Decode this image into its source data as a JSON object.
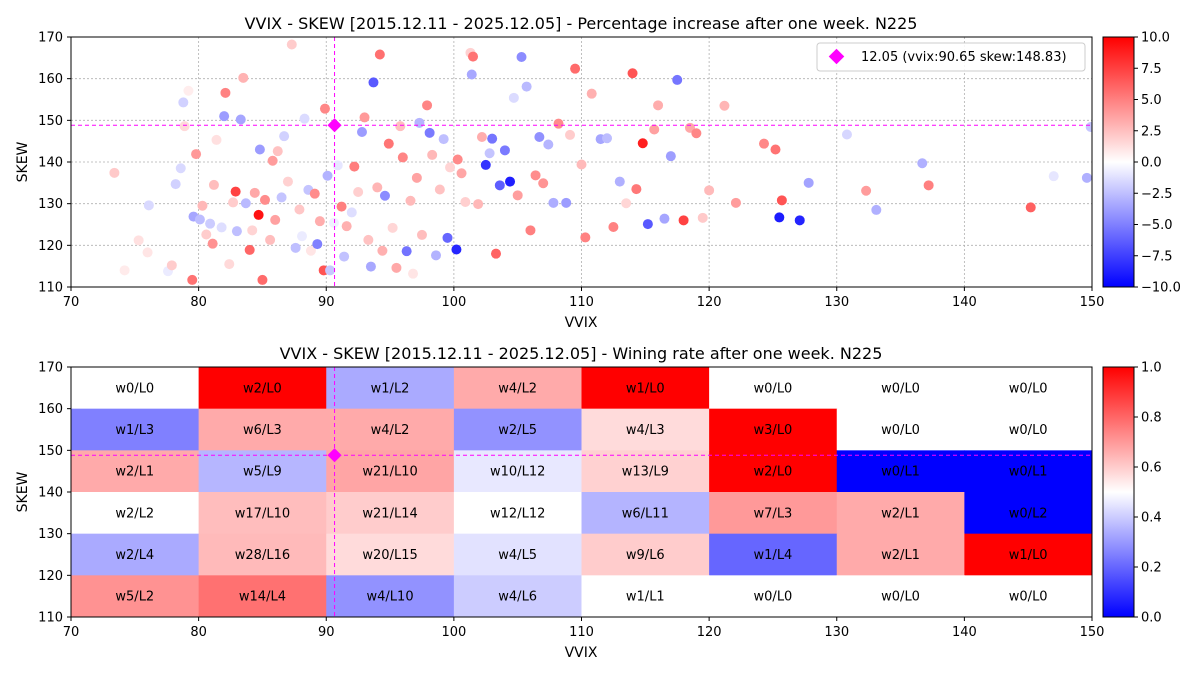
{
  "chart_data": [
    {
      "type": "scatter",
      "title": "VVIX - SKEW [2015.12.11 - 2025.12.05]  - Percentage increase after one week. N225",
      "xlabel": "VVIX",
      "ylabel": "SKEW",
      "xlim": [
        70,
        150
      ],
      "ylim": [
        110,
        170
      ],
      "x_ticks": [
        "70",
        "80",
        "90",
        "100",
        "110",
        "120",
        "130",
        "140",
        "150"
      ],
      "y_ticks": [
        "110",
        "120",
        "130",
        "140",
        "150",
        "160",
        "170"
      ],
      "grid": true,
      "colorbar": {
        "min": -10,
        "max": 10,
        "ticks": [
          "10.0",
          "7.5",
          "5.0",
          "2.5",
          "0.0",
          "−2.5",
          "−5.0",
          "−7.5",
          "−10.0"
        ],
        "colormap": "bwr"
      },
      "marker": {
        "x": 90.65,
        "y": 148.83,
        "color": "#ff00ff",
        "label": "12.05 (vvix:90.65 skew:148.83)"
      },
      "legend_position": "top-right",
      "points": [
        [
          73.4,
          137.4,
          2.1
        ],
        [
          74.2,
          114.0,
          0.8
        ],
        [
          75.3,
          121.2,
          1.2
        ],
        [
          76.1,
          129.6,
          -1.5
        ],
        [
          76.0,
          118.3,
          1.0
        ],
        [
          77.6,
          113.8,
          -0.8
        ],
        [
          77.9,
          115.2,
          2.0
        ],
        [
          78.2,
          134.7,
          -1.8
        ],
        [
          78.6,
          138.5,
          -1.5
        ],
        [
          78.8,
          154.3,
          -1.8
        ],
        [
          78.9,
          148.6,
          1.5
        ],
        [
          79.2,
          157.1,
          0.7
        ],
        [
          79.5,
          111.7,
          5.5
        ],
        [
          79.6,
          126.9,
          -3.5
        ],
        [
          79.8,
          141.9,
          4.0
        ],
        [
          80.1,
          126.2,
          -2.6
        ],
        [
          80.3,
          129.5,
          2.8
        ],
        [
          80.6,
          122.6,
          2.0
        ],
        [
          80.9,
          125.2,
          -2.0
        ],
        [
          81.1,
          120.4,
          4.3
        ],
        [
          81.2,
          134.5,
          2.6
        ],
        [
          81.4,
          145.3,
          1.2
        ],
        [
          81.8,
          124.3,
          -1.3
        ],
        [
          82.0,
          151.0,
          -3.9
        ],
        [
          82.1,
          156.6,
          4.9
        ],
        [
          82.4,
          115.5,
          1.5
        ],
        [
          82.7,
          130.3,
          2.0
        ],
        [
          82.9,
          132.9,
          7.4
        ],
        [
          83.0,
          123.4,
          -2.5
        ],
        [
          83.3,
          150.2,
          -3.5
        ],
        [
          83.5,
          160.2,
          3.0
        ],
        [
          83.7,
          130.1,
          -2.7
        ],
        [
          84.0,
          118.9,
          6.0
        ],
        [
          84.2,
          123.6,
          1.7
        ],
        [
          84.4,
          132.6,
          3.4
        ],
        [
          84.7,
          127.3,
          9.3
        ],
        [
          84.8,
          143.0,
          -3.9
        ],
        [
          85.0,
          111.7,
          5.8
        ],
        [
          85.2,
          130.9,
          4.5
        ],
        [
          85.6,
          121.3,
          2.6
        ],
        [
          85.8,
          140.3,
          3.9
        ],
        [
          86.0,
          126.1,
          3.7
        ],
        [
          86.2,
          142.6,
          2.4
        ],
        [
          86.5,
          131.5,
          -2.3
        ],
        [
          86.7,
          146.2,
          -1.8
        ],
        [
          87.0,
          135.3,
          1.8
        ],
        [
          87.3,
          168.2,
          2.0
        ],
        [
          87.6,
          119.4,
          -2.5
        ],
        [
          87.9,
          128.6,
          2.2
        ],
        [
          88.1,
          122.2,
          -0.8
        ],
        [
          88.3,
          150.4,
          -1.4
        ],
        [
          88.6,
          133.3,
          -2.3
        ],
        [
          88.8,
          118.7,
          1.0
        ],
        [
          89.1,
          132.4,
          4.5
        ],
        [
          89.3,
          120.3,
          -5.0
        ],
        [
          89.5,
          125.8,
          3.2
        ],
        [
          89.8,
          114.0,
          6.7
        ],
        [
          89.9,
          152.8,
          4.7
        ],
        [
          90.1,
          136.7,
          -3.0
        ],
        [
          90.3,
          114.0,
          -2.2
        ],
        [
          90.6,
          125.4,
          -0.6
        ],
        [
          90.9,
          139.2,
          -1.0
        ],
        [
          91.2,
          129.3,
          5.0
        ],
        [
          91.4,
          117.3,
          -2.4
        ],
        [
          91.6,
          124.6,
          3.1
        ],
        [
          92.0,
          127.9,
          -1.3
        ],
        [
          92.2,
          138.9,
          5.1
        ],
        [
          92.5,
          132.8,
          1.9
        ],
        [
          92.8,
          147.2,
          -3.9
        ],
        [
          93.0,
          150.7,
          4.0
        ],
        [
          93.3,
          121.3,
          2.4
        ],
        [
          93.5,
          114.9,
          -3.4
        ],
        [
          93.7,
          159.1,
          -6.5
        ],
        [
          94.0,
          133.9,
          2.9
        ],
        [
          94.2,
          165.8,
          5.6
        ],
        [
          94.4,
          118.7,
          3.1
        ],
        [
          94.6,
          131.9,
          -4.5
        ],
        [
          94.9,
          144.4,
          5.4
        ],
        [
          95.2,
          124.2,
          1.6
        ],
        [
          95.5,
          114.6,
          3.4
        ],
        [
          95.8,
          148.6,
          2.5
        ],
        [
          96.0,
          141.1,
          4.8
        ],
        [
          96.3,
          118.6,
          -5.5
        ],
        [
          96.6,
          130.7,
          2.7
        ],
        [
          96.8,
          113.2,
          1.0
        ],
        [
          97.1,
          136.2,
          3.6
        ],
        [
          97.3,
          149.4,
          -2.9
        ],
        [
          97.5,
          122.5,
          2.6
        ],
        [
          97.9,
          153.6,
          4.8
        ],
        [
          98.1,
          147.0,
          -5.2
        ],
        [
          98.3,
          141.7,
          2.8
        ],
        [
          98.6,
          117.6,
          -3.0
        ],
        [
          98.9,
          133.4,
          2.4
        ],
        [
          99.2,
          145.5,
          -2.5
        ],
        [
          99.5,
          121.8,
          -6.0
        ],
        [
          99.7,
          138.7,
          1.7
        ],
        [
          100.2,
          119.0,
          -8.5
        ],
        [
          100.3,
          140.6,
          4.6
        ],
        [
          100.6,
          137.3,
          3.5
        ],
        [
          100.9,
          130.4,
          1.9
        ],
        [
          101.3,
          166.2,
          1.8
        ],
        [
          101.4,
          161.0,
          -3.4
        ],
        [
          101.5,
          165.3,
          5.5
        ],
        [
          101.9,
          129.9,
          2.8
        ],
        [
          102.2,
          146.0,
          3.2
        ],
        [
          102.5,
          139.3,
          -8.0
        ],
        [
          102.8,
          142.1,
          -2.3
        ],
        [
          103.0,
          145.6,
          -5.4
        ],
        [
          103.3,
          118.0,
          6.1
        ],
        [
          103.6,
          134.4,
          -6.3
        ],
        [
          104.0,
          142.8,
          -5.2
        ],
        [
          104.4,
          135.3,
          -8.8
        ],
        [
          104.7,
          155.4,
          -1.4
        ],
        [
          105.0,
          132.0,
          3.8
        ],
        [
          105.3,
          165.2,
          -4.5
        ],
        [
          105.7,
          158.1,
          -2.7
        ],
        [
          106.0,
          123.6,
          5.0
        ],
        [
          106.4,
          136.8,
          4.5
        ],
        [
          106.7,
          146.0,
          -4.3
        ],
        [
          107.0,
          134.9,
          4.2
        ],
        [
          107.4,
          144.2,
          -2.9
        ],
        [
          107.8,
          130.2,
          -3.2
        ],
        [
          108.2,
          149.2,
          4.5
        ],
        [
          108.8,
          130.2,
          -3.9
        ],
        [
          109.1,
          146.5,
          2.0
        ],
        [
          109.5,
          162.4,
          5.8
        ],
        [
          110.0,
          139.4,
          2.7
        ],
        [
          110.3,
          121.9,
          4.9
        ],
        [
          110.8,
          156.4,
          3.1
        ],
        [
          111.5,
          145.5,
          -3.5
        ],
        [
          112.0,
          145.7,
          -2.6
        ],
        [
          112.5,
          124.4,
          4.9
        ],
        [
          113.0,
          135.3,
          -3.1
        ],
        [
          113.5,
          130.1,
          1.6
        ],
        [
          114.0,
          161.3,
          6.7
        ],
        [
          114.3,
          133.5,
          5.3
        ],
        [
          114.8,
          144.5,
          8.8
        ],
        [
          115.2,
          125.1,
          -6.5
        ],
        [
          115.7,
          147.8,
          3.7
        ],
        [
          116.0,
          153.6,
          3.2
        ],
        [
          116.5,
          126.4,
          -3.5
        ],
        [
          117.0,
          141.4,
          -3.8
        ],
        [
          117.5,
          159.7,
          -5.4
        ],
        [
          118.0,
          126.0,
          7.4
        ],
        [
          118.5,
          148.2,
          3.4
        ],
        [
          119.0,
          146.9,
          4.7
        ],
        [
          119.5,
          126.6,
          2.1
        ],
        [
          120.0,
          133.2,
          2.7
        ],
        [
          121.2,
          153.5,
          2.9
        ],
        [
          122.1,
          130.2,
          3.9
        ],
        [
          124.3,
          144.4,
          4.7
        ],
        [
          125.2,
          143.0,
          5.5
        ],
        [
          125.5,
          126.7,
          -8.9
        ],
        [
          125.7,
          130.8,
          6.7
        ],
        [
          127.1,
          126.0,
          -8.6
        ],
        [
          127.8,
          135.0,
          -3.6
        ],
        [
          130.8,
          146.6,
          -1.6
        ],
        [
          132.3,
          133.1,
          3.9
        ],
        [
          133.1,
          128.5,
          -3.1
        ],
        [
          136.7,
          139.7,
          -3.1
        ],
        [
          137.2,
          134.4,
          5.0
        ],
        [
          145.2,
          129.1,
          6.2
        ],
        [
          147.0,
          136.6,
          -1.0
        ],
        [
          149.6,
          136.2,
          -3.1
        ],
        [
          149.9,
          148.4,
          -2.2
        ]
      ]
    },
    {
      "type": "heatmap",
      "title": "VVIX - SKEW [2015.12.11 - 2025.12.05]  - Wining rate after one week. N225",
      "xlabel": "VVIX",
      "ylabel": "SKEW",
      "xlim": [
        70,
        150
      ],
      "ylim": [
        110,
        170
      ],
      "x_ticks": [
        "70",
        "80",
        "90",
        "100",
        "110",
        "120",
        "130",
        "140",
        "150"
      ],
      "y_ticks": [
        "110",
        "120",
        "130",
        "140",
        "150",
        "160",
        "170"
      ],
      "x_edges": [
        70,
        80,
        90,
        100,
        110,
        120,
        130,
        140,
        150
      ],
      "y_edges": [
        110,
        120,
        130,
        140,
        150,
        160,
        170
      ],
      "colorbar": {
        "min": 0,
        "max": 1,
        "ticks": [
          "1.0",
          "0.8",
          "0.6",
          "0.4",
          "0.2",
          "0.0"
        ],
        "colormap": "bwr"
      },
      "marker": {
        "x": 90.65,
        "y": 148.83,
        "color": "#ff00ff"
      },
      "rows_top_to_bottom": [
        {
          "labels": [
            "w0/L0",
            "w2/L0",
            "w1/L2",
            "w4/L2",
            "w1/L0",
            "w0/L0",
            "w0/L0",
            "w0/L0"
          ],
          "rates": [
            null,
            1.0,
            0.333,
            0.667,
            1.0,
            null,
            null,
            null
          ]
        },
        {
          "labels": [
            "w1/L3",
            "w6/L3",
            "w4/L2",
            "w2/L5",
            "w4/L3",
            "w3/L0",
            "w0/L0",
            "w0/L0"
          ],
          "rates": [
            0.25,
            0.667,
            0.667,
            0.286,
            0.571,
            1.0,
            null,
            null
          ]
        },
        {
          "labels": [
            "w2/L1",
            "w5/L9",
            "w21/L10",
            "w10/L12",
            "w13/L9",
            "w2/L0",
            "w0/L1",
            "w0/L1"
          ],
          "rates": [
            0.667,
            0.357,
            0.677,
            0.455,
            0.591,
            1.0,
            0.0,
            0.0
          ]
        },
        {
          "labels": [
            "w2/L2",
            "w17/L10",
            "w21/L14",
            "w12/L12",
            "w6/L11",
            "w7/L3",
            "w2/L1",
            "w0/L2"
          ],
          "rates": [
            0.5,
            0.63,
            0.6,
            0.5,
            0.353,
            0.7,
            0.667,
            0.0
          ]
        },
        {
          "labels": [
            "w2/L4",
            "w28/L16",
            "w20/L15",
            "w4/L5",
            "w9/L6",
            "w1/L4",
            "w2/L1",
            "w1/L0"
          ],
          "rates": [
            0.333,
            0.636,
            0.571,
            0.444,
            0.6,
            0.2,
            0.667,
            1.0
          ]
        },
        {
          "labels": [
            "w5/L2",
            "w14/L4",
            "w4/L10",
            "w4/L6",
            "w1/L1",
            "w0/L0",
            "w0/L0",
            "w0/L0"
          ],
          "rates": [
            0.714,
            0.778,
            0.286,
            0.4,
            0.5,
            null,
            null,
            null
          ]
        }
      ]
    }
  ]
}
